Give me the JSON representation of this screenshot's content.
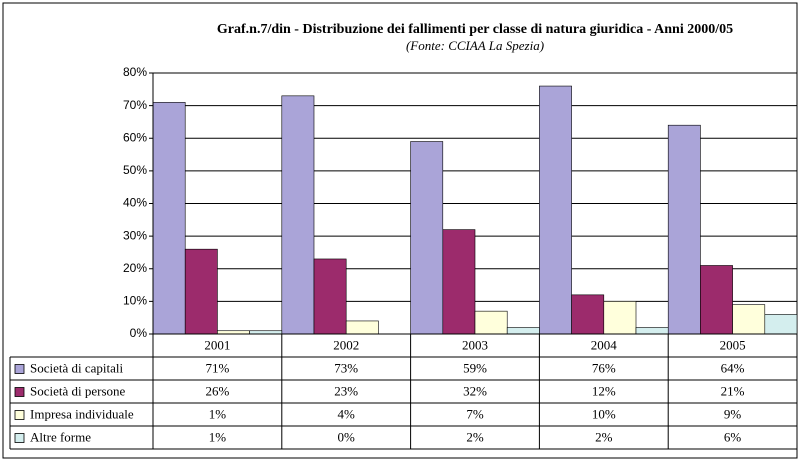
{
  "chart_data": {
    "type": "bar",
    "title": "Graf.n.7/din - Distribuzione dei fallimenti per classe di natura giuridica - Anni 2000/05",
    "subtitle": "(Fonte: CCIAA La Spezia)",
    "categories": [
      "2001",
      "2002",
      "2003",
      "2004",
      "2005"
    ],
    "series": [
      {
        "name": "Società di capitali",
        "color": "#aaa4d8",
        "values": [
          71,
          73,
          59,
          76,
          64
        ],
        "value_labels": [
          "71%",
          "73%",
          "59%",
          "76%",
          "64%"
        ]
      },
      {
        "name": "Società di persone",
        "color": "#9c2b6c",
        "values": [
          26,
          23,
          32,
          12,
          21
        ],
        "value_labels": [
          "26%",
          "23%",
          "32%",
          "12%",
          "21%"
        ]
      },
      {
        "name": "Impresa individuale",
        "color": "#ffffdc",
        "values": [
          1,
          4,
          7,
          10,
          9
        ],
        "value_labels": [
          "1%",
          "4%",
          "7%",
          "10%",
          "9%"
        ]
      },
      {
        "name": "Altre forme",
        "color": "#d4eeee",
        "values": [
          1,
          0,
          2,
          2,
          6
        ],
        "value_labels": [
          "1%",
          "0%",
          "2%",
          "2%",
          "6%"
        ]
      }
    ],
    "ylim": [
      0,
      80
    ],
    "yticks": [
      {
        "value": 0,
        "label": "0%"
      },
      {
        "value": 10,
        "label": "10%"
      },
      {
        "value": 20,
        "label": "20%"
      },
      {
        "value": 30,
        "label": "30%"
      },
      {
        "value": 40,
        "label": "40%"
      },
      {
        "value": 50,
        "label": "50%"
      },
      {
        "value": 60,
        "label": "60%"
      },
      {
        "value": 70,
        "label": "70%"
      },
      {
        "value": 80,
        "label": "80%"
      }
    ],
    "grid": true
  }
}
